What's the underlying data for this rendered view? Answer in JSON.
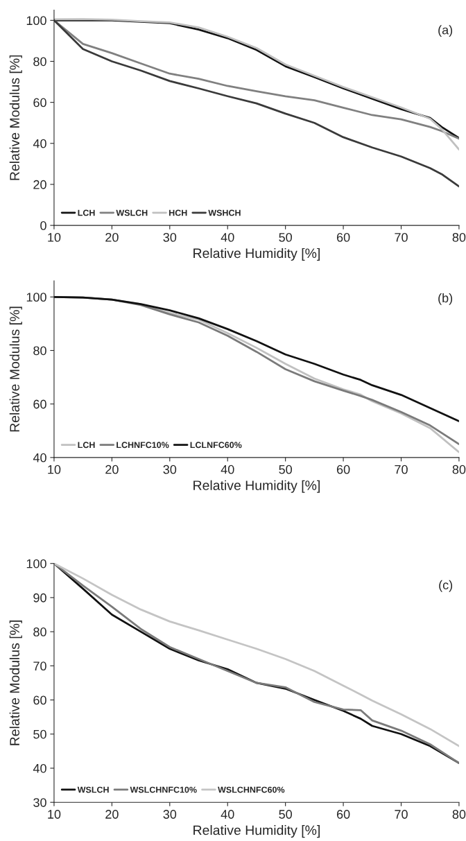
{
  "chart_data": [
    {
      "type": "line",
      "xlabel": "Relative Humidity [%]",
      "ylabel": "Relative Modulus [%]",
      "annotations": [
        "(a)"
      ],
      "x": [
        10,
        15,
        20,
        25,
        30,
        35,
        40,
        45,
        50,
        55,
        60,
        65,
        70,
        75,
        77,
        80
      ],
      "xlim": [
        10,
        80
      ],
      "xticks": [
        10,
        20,
        30,
        40,
        50,
        60,
        70,
        80
      ],
      "ylim": [
        0,
        105
      ],
      "yticks": [
        0,
        20,
        40,
        60,
        80,
        100
      ],
      "legend": "bottom left",
      "grid": false,
      "series": [
        {
          "name": "LCH",
          "color": "#111111",
          "x": [
            10,
            20,
            25,
            30,
            35,
            40,
            45,
            50,
            55,
            60,
            65,
            70,
            75,
            77,
            80
          ],
          "values": [
            100,
            100,
            99.3,
            98.6,
            95.5,
            91.3,
            85.6,
            77.6,
            72.3,
            66.8,
            61.8,
            56.7,
            52.4,
            48,
            42.6
          ]
        },
        {
          "name": "WSLCH",
          "color": "#808080",
          "values": [
            100,
            88.5,
            84,
            79,
            74,
            71.5,
            68,
            65.4,
            63,
            61,
            57.4,
            53.8,
            51.7,
            48,
            46,
            42.3
          ]
        },
        {
          "name": "HCH",
          "color": "#c0c0c0",
          "values": [
            100.5,
            100.6,
            100.3,
            99.6,
            99,
            96.5,
            92,
            86.5,
            78.5,
            73,
            67.5,
            62.5,
            57.5,
            52,
            47,
            37
          ]
        },
        {
          "name": "WSHCH",
          "color": "#3a3a3a",
          "values": [
            100,
            86,
            80,
            75.5,
            70.4,
            66.8,
            63,
            59.5,
            54.5,
            50,
            43,
            38,
            33.6,
            27.9,
            25,
            19
          ]
        }
      ]
    },
    {
      "type": "line",
      "xlabel": "Relative Humidity [%]",
      "ylabel": "Relative Modulus [%]",
      "annotations": [
        "(b)"
      ],
      "x": [
        10,
        15,
        20,
        25,
        30,
        35,
        40,
        45,
        50,
        55,
        60,
        63,
        65,
        70,
        75,
        80
      ],
      "xlim": [
        10,
        80
      ],
      "xticks": [
        10,
        20,
        30,
        40,
        50,
        60,
        70,
        80
      ],
      "ylim": [
        40,
        106
      ],
      "yticks": [
        40,
        60,
        80,
        100
      ],
      "legend": "bottom left",
      "grid": false,
      "series": [
        {
          "name": "LCH",
          "color": "#c0c0c0",
          "values": [
            100,
            99.8,
            99,
            97.3,
            94,
            91.5,
            86.5,
            81,
            75,
            69.5,
            65.5,
            63.5,
            61,
            56.5,
            51,
            42
          ]
        },
        {
          "name": "LCHNFC10%",
          "color": "#7a7a7a",
          "values": [
            100,
            99.8,
            99,
            97,
            93.5,
            90.5,
            85.5,
            79.5,
            73,
            68.5,
            65,
            63,
            61.5,
            57,
            52,
            45
          ]
        },
        {
          "name": "LCLNFC60%",
          "color": "#111111",
          "values": [
            100,
            99.8,
            99,
            97.3,
            95,
            92,
            88,
            83.5,
            78.5,
            75,
            71,
            69,
            67,
            63.4,
            58.5,
            53.6
          ]
        }
      ]
    },
    {
      "type": "line",
      "xlabel": "Relative Humidity [%]",
      "ylabel": "Relative Modulus [%]",
      "annotations": [
        "(c)"
      ],
      "x": [
        10,
        15,
        20,
        25,
        30,
        35,
        40,
        45,
        50,
        55,
        60,
        63,
        65,
        70,
        75,
        80
      ],
      "xlim": [
        10,
        80
      ],
      "xticks": [
        10,
        20,
        30,
        40,
        50,
        60,
        70,
        80
      ],
      "ylim": [
        30,
        100
      ],
      "yticks": [
        30,
        40,
        50,
        60,
        70,
        80,
        90,
        100
      ],
      "legend": "bottom left",
      "grid": false,
      "series": [
        {
          "name": "WSLCH",
          "color": "#111111",
          "values": [
            100,
            92.6,
            85,
            80,
            75,
            71.6,
            69,
            65,
            63.3,
            60,
            56.8,
            54.5,
            52.4,
            50,
            46.5,
            41.5
          ]
        },
        {
          "name": "WSLCHNFC10%",
          "color": "#7a7a7a",
          "values": [
            100,
            93.5,
            87.3,
            80.8,
            75.5,
            72,
            68.5,
            65,
            63.7,
            59.4,
            57.2,
            57,
            54,
            51,
            47,
            41.5
          ]
        },
        {
          "name": "WSLCHNFC60%",
          "color": "#c4c4c4",
          "values": [
            100,
            95.6,
            90.8,
            86.5,
            83,
            80.4,
            77.7,
            75,
            72,
            68.5,
            64.2,
            61.6,
            59.8,
            55.8,
            51.5,
            46.5
          ]
        }
      ]
    }
  ]
}
